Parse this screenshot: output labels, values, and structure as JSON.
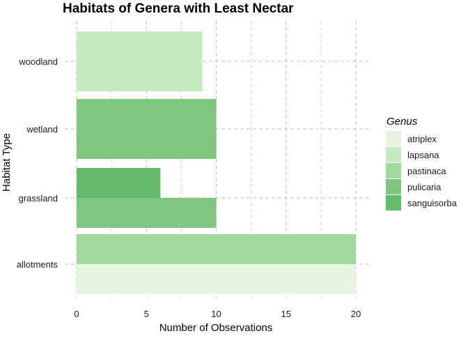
{
  "chart_data": {
    "type": "bar",
    "orientation": "horizontal",
    "title": "Habitats of Genera with Least Nectar",
    "xlabel": "Number of Observations",
    "ylabel": "Habitat Type",
    "xlim": [
      0,
      20
    ],
    "x_ticks": [
      0,
      5,
      10,
      15,
      20
    ],
    "categories": [
      "allotments",
      "grassland",
      "wetland",
      "woodland"
    ],
    "grid": true,
    "legend": {
      "title": "Genus",
      "position": "right",
      "entries": [
        {
          "name": "atriplex",
          "color": "#e5f5e0"
        },
        {
          "name": "lapsana",
          "color": "#c7e9c0"
        },
        {
          "name": "pastinaca",
          "color": "#a1d99b"
        },
        {
          "name": "pulicaria",
          "color": "#7fc77f"
        },
        {
          "name": "sanguisorba",
          "color": "#66bb6a"
        }
      ]
    },
    "bars": [
      {
        "category": "allotments",
        "genus": "atriplex",
        "value": 20
      },
      {
        "category": "allotments",
        "genus": "pastinaca",
        "value": 20
      },
      {
        "category": "grassland",
        "genus": "pulicaria",
        "value": 10
      },
      {
        "category": "grassland",
        "genus": "sanguisorba",
        "value": 6
      },
      {
        "category": "wetland",
        "genus": "pulicaria",
        "value": 10
      },
      {
        "category": "woodland",
        "genus": "lapsana",
        "value": 9
      }
    ]
  }
}
